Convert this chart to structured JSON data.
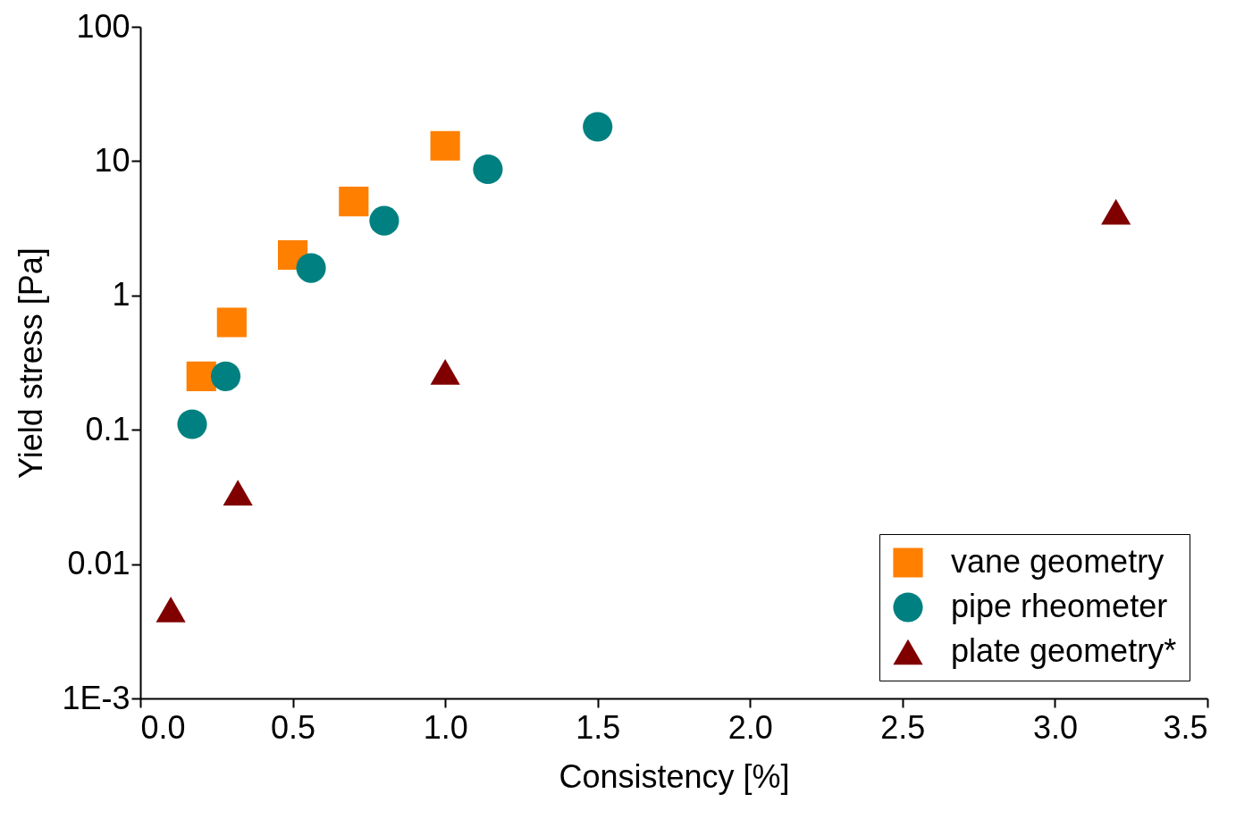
{
  "chart_data": {
    "type": "scatter",
    "xlabel": "Consistency [%]",
    "ylabel": "Yield stress [Pa]",
    "log": "y",
    "xlim": [
      0,
      3.5
    ],
    "ylim": [
      0.001,
      100
    ],
    "xticks": [
      {
        "value": 0,
        "label": "0.0"
      },
      0.5,
      {
        "value": 1,
        "label": "1.0"
      },
      1.5,
      {
        "value": 2,
        "label": "2.0"
      },
      2.5,
      {
        "value": 3,
        "label": "3.0"
      },
      3.5
    ],
    "yticks": [
      {
        "value": 0.001,
        "label": "1E-3"
      },
      0.01,
      0.1,
      1,
      10,
      100
    ],
    "grid": false,
    "legend": "bottom right",
    "series": [
      {
        "name": "vane geometry",
        "color": "#ff7f00",
        "marker": "square",
        "x": [
          0.2,
          0.3,
          0.5,
          0.7,
          1.0
        ],
        "values": [
          0.25,
          0.63,
          2.0,
          5.0,
          13
        ]
      },
      {
        "name": "pipe rheometer",
        "color": "#008080",
        "marker": "circle",
        "x": [
          0.17,
          0.28,
          0.56,
          0.8,
          1.14,
          1.5
        ],
        "values": [
          0.11,
          0.25,
          1.6,
          3.6,
          8.7,
          18
        ]
      },
      {
        "name": "plate geometry*",
        "color": "#800000",
        "marker": "triangle",
        "x": [
          0.1,
          0.32,
          1.0,
          3.2
        ],
        "values": [
          0.0046,
          0.034,
          0.27,
          4.2
        ]
      }
    ]
  }
}
